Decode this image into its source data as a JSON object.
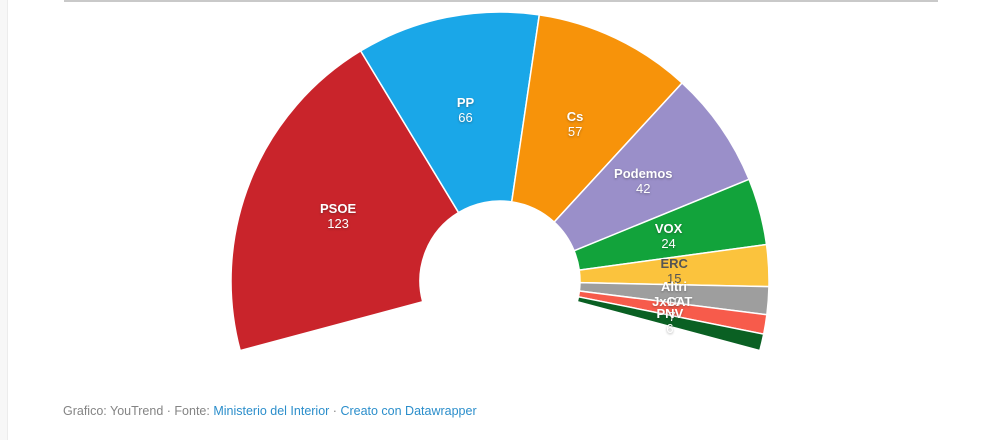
{
  "chart_data": {
    "type": "pie",
    "variant": "half-donut-parliament",
    "title": "",
    "legend_position": "labels-on-slices",
    "series": [
      {
        "label": "PSOE",
        "value": 123,
        "color": "#c9242b",
        "label_color": "#ffffff"
      },
      {
        "label": "PP",
        "value": 66,
        "color": "#1aa7e8",
        "label_color": "#ffffff"
      },
      {
        "label": "Cs",
        "value": 57,
        "color": "#f7930a",
        "label_color": "#ffffff"
      },
      {
        "label": "Podemos",
        "value": 42,
        "color": "#9a8fc9",
        "label_color": "#ffffff"
      },
      {
        "label": "VOX",
        "value": 24,
        "color": "#12a33b",
        "label_color": "#ffffff"
      },
      {
        "label": "ERC",
        "value": 15,
        "color": "#fbc33d",
        "label_color": "#555555"
      },
      {
        "label": "Altri",
        "value": 10,
        "color": "#9e9e9e",
        "label_color": "#ffffff"
      },
      {
        "label": "JxCAT",
        "value": 7,
        "color": "#f75b4b",
        "label_color": "#ffffff"
      },
      {
        "label": "PNV",
        "value": 6,
        "color": "#0a6023",
        "label_color": "#ffffff"
      }
    ],
    "geometry": {
      "cx": 500,
      "cy": 281,
      "outer_radius": 269,
      "inner_radius": 80,
      "label_radius": 174.5,
      "start_angle_deg": 195,
      "end_angle_deg": -15
    }
  },
  "footer": {
    "credit_prefix": "Grafico: YouTrend · Fonte: ",
    "source_link": "Ministerio del Interior",
    "separator": " · ",
    "tool_link": "Creato con Datawrapper"
  }
}
